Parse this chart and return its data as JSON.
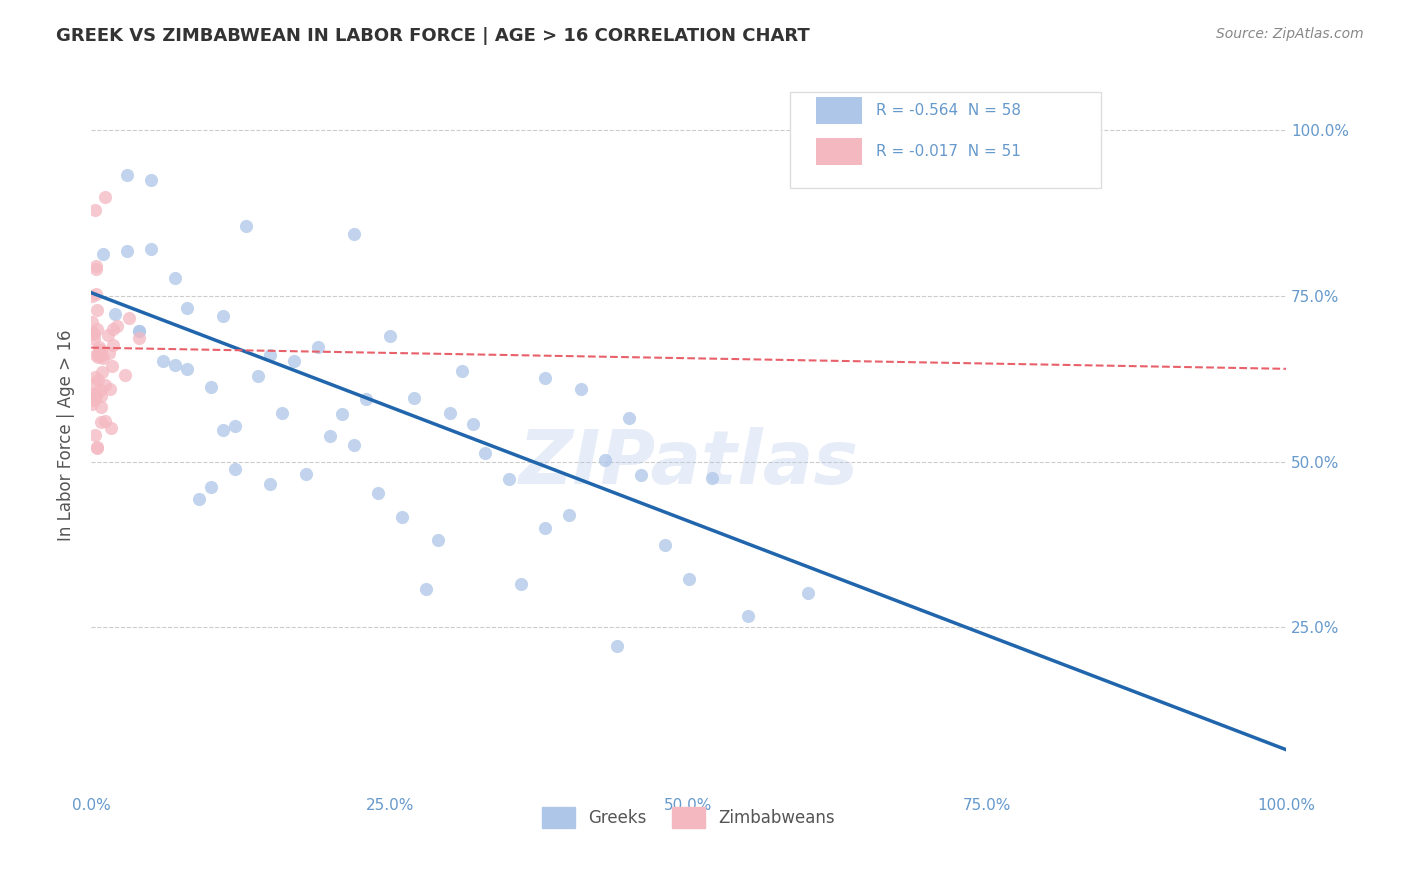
{
  "title": "GREEK VS ZIMBABWEAN IN LABOR FORCE | AGE > 16 CORRELATION CHART",
  "source": "Source: ZipAtlas.com",
  "ylabel": "In Labor Force | Age > 16",
  "xlim": [
    0.0,
    1.0
  ],
  "ylim": [
    0.0,
    1.08
  ],
  "xticks": [
    0.0,
    0.25,
    0.5,
    0.75,
    1.0
  ],
  "yticks": [
    0.0,
    0.25,
    0.5,
    0.75,
    1.0
  ],
  "xtick_labels": [
    "0.0%",
    "25.0%",
    "50.0%",
    "75.0%",
    "100.0%"
  ],
  "ytick_labels": [
    "",
    "25.0%",
    "50.0%",
    "75.0%",
    "100.0%"
  ],
  "greek_R": -0.564,
  "greek_N": 58,
  "zimbabwean_R": -0.017,
  "zimbabwean_N": 51,
  "greek_color": "#aec6e8",
  "zimbabwean_color": "#f4b8c1",
  "greek_line_color": "#2166ac",
  "zimbabwean_line_color": "#e8606a",
  "legend_greek_label": "Greeks",
  "legend_zimbabwean_label": "Zimbabweans",
  "watermark": "ZIPatlas",
  "background_color": "#ffffff",
  "title_color": "#333333",
  "axis_label_color": "#555555",
  "tick_color": "#6699cc",
  "grid_color": "#cccccc",
  "greek_trend_x0": 0.0,
  "greek_trend_y0": 0.755,
  "greek_trend_x1": 1.0,
  "greek_trend_y1": 0.065,
  "zimb_trend_x0": 0.0,
  "zimb_trend_y0": 0.672,
  "zimb_trend_x1": 1.0,
  "zimb_trend_y1": 0.64
}
